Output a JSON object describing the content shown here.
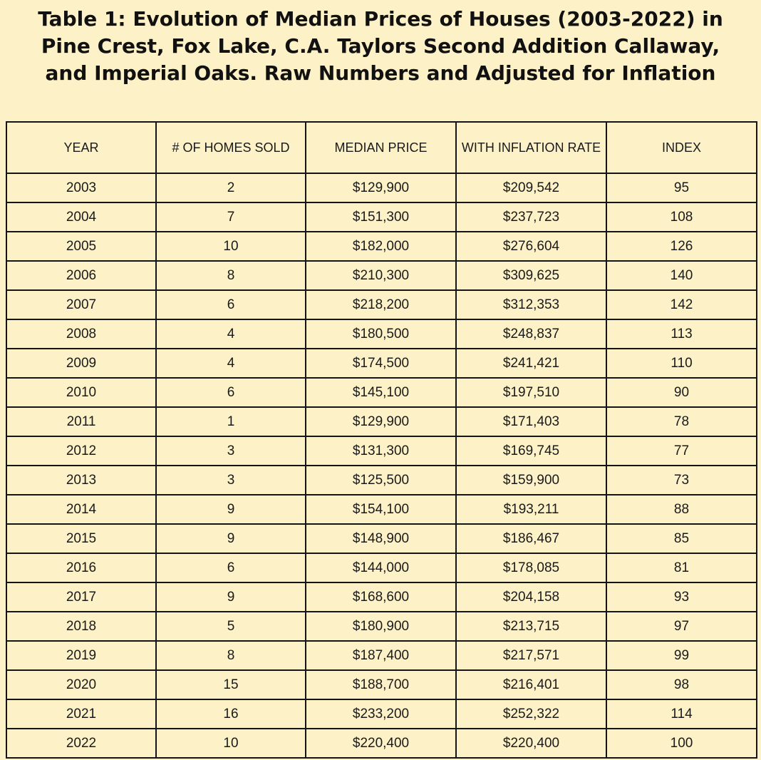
{
  "title": {
    "line1": "Table 1: Evolution of Median Prices of Houses (2003-2022) in",
    "line2": "Pine Crest, Fox Lake, C.A. Taylors Second Addition Callaway,",
    "line3": "and Imperial Oaks. Raw Numbers and Adjusted for Inflation"
  },
  "table": {
    "headers": [
      "YEAR",
      "# OF HOMES SOLD",
      "MEDIAN PRICE",
      "WITH INFLATION RATE",
      "INDEX"
    ],
    "rows": [
      [
        "2003",
        "2",
        "$129,900",
        "$209,542",
        "95"
      ],
      [
        "2004",
        "7",
        "$151,300",
        "$237,723",
        "108"
      ],
      [
        "2005",
        "10",
        "$182,000",
        "$276,604",
        "126"
      ],
      [
        "2006",
        "8",
        "$210,300",
        "$309,625",
        "140"
      ],
      [
        "2007",
        "6",
        "$218,200",
        "$312,353",
        "142"
      ],
      [
        "2008",
        "4",
        "$180,500",
        "$248,837",
        "113"
      ],
      [
        "2009",
        "4",
        "$174,500",
        "$241,421",
        "110"
      ],
      [
        "2010",
        "6",
        "$145,100",
        "$197,510",
        "90"
      ],
      [
        "2011",
        "1",
        "$129,900",
        "$171,403",
        "78"
      ],
      [
        "2012",
        "3",
        "$131,300",
        "$169,745",
        "77"
      ],
      [
        "2013",
        "3",
        "$125,500",
        "$159,900",
        "73"
      ],
      [
        "2014",
        "9",
        "$154,100",
        "$193,211",
        "88"
      ],
      [
        "2015",
        "9",
        "$148,900",
        "$186,467",
        "85"
      ],
      [
        "2016",
        "6",
        "$144,000",
        "$178,085",
        "81"
      ],
      [
        "2017",
        "9",
        "$168,600",
        "$204,158",
        "93"
      ],
      [
        "2018",
        "5",
        "$180,900",
        "$213,715",
        "97"
      ],
      [
        "2019",
        "8",
        "$187,400",
        "$217,571",
        "99"
      ],
      [
        "2020",
        "15",
        "$188,700",
        "$216,401",
        "98"
      ],
      [
        "2021",
        "16",
        "$233,200",
        "$252,322",
        "114"
      ],
      [
        "2022",
        "10",
        "$220,400",
        "$220,400",
        "100"
      ]
    ]
  }
}
